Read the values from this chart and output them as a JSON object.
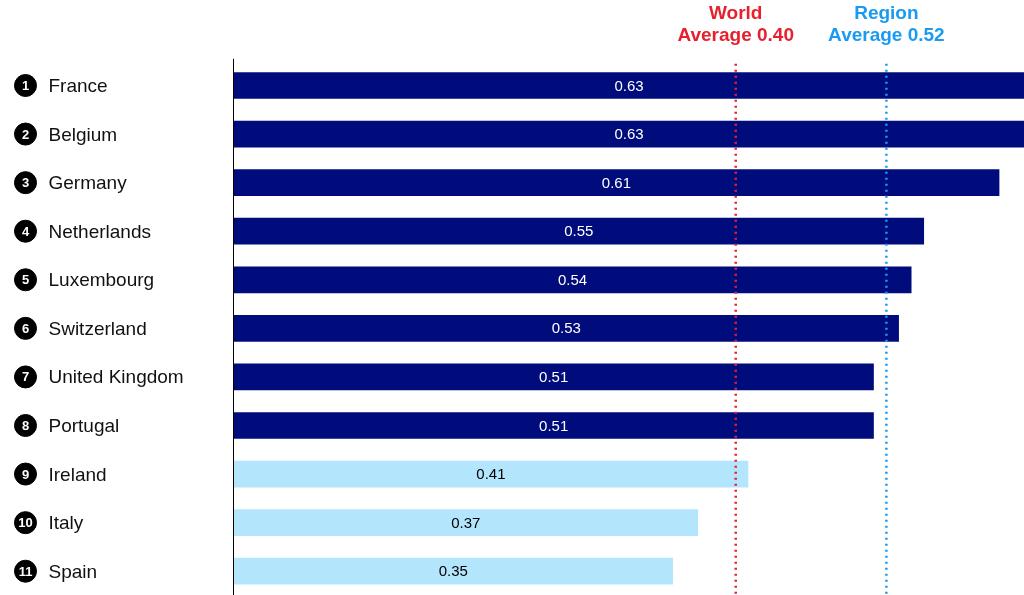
{
  "chart_data": {
    "type": "bar",
    "orientation": "horizontal",
    "categories": [
      "France",
      "Belgium",
      "Germany",
      "Netherlands",
      "Luxembourg",
      "Switzerland",
      "United Kingdom",
      "Portugal",
      "Ireland",
      "Italy",
      "Spain"
    ],
    "values": [
      0.63,
      0.63,
      0.61,
      0.55,
      0.54,
      0.53,
      0.51,
      0.51,
      0.41,
      0.37,
      0.35
    ],
    "colors": [
      "#000c7b",
      "#000c7b",
      "#000c7b",
      "#000c7b",
      "#000c7b",
      "#000c7b",
      "#000c7b",
      "#000c7b",
      "#b3e5fc",
      "#b3e5fc",
      "#b3e5fc"
    ],
    "xlim": [
      0,
      0.63
    ],
    "data_labels": true,
    "tick_labels": "y",
    "grid": false,
    "annotations": [
      "1",
      "2",
      "3",
      "4",
      "5",
      "6",
      "7",
      "8",
      "9",
      "10",
      "11"
    ],
    "ref_lines": [
      {
        "axis": "x",
        "value": 0.4,
        "label": "World Average 0.40",
        "color": "#e8202e",
        "line_style": "dotted"
      },
      {
        "axis": "x",
        "value": 0.52,
        "label": "Region Average 0.52",
        "color": "#1a9af0",
        "line_style": "dotted"
      }
    ]
  }
}
